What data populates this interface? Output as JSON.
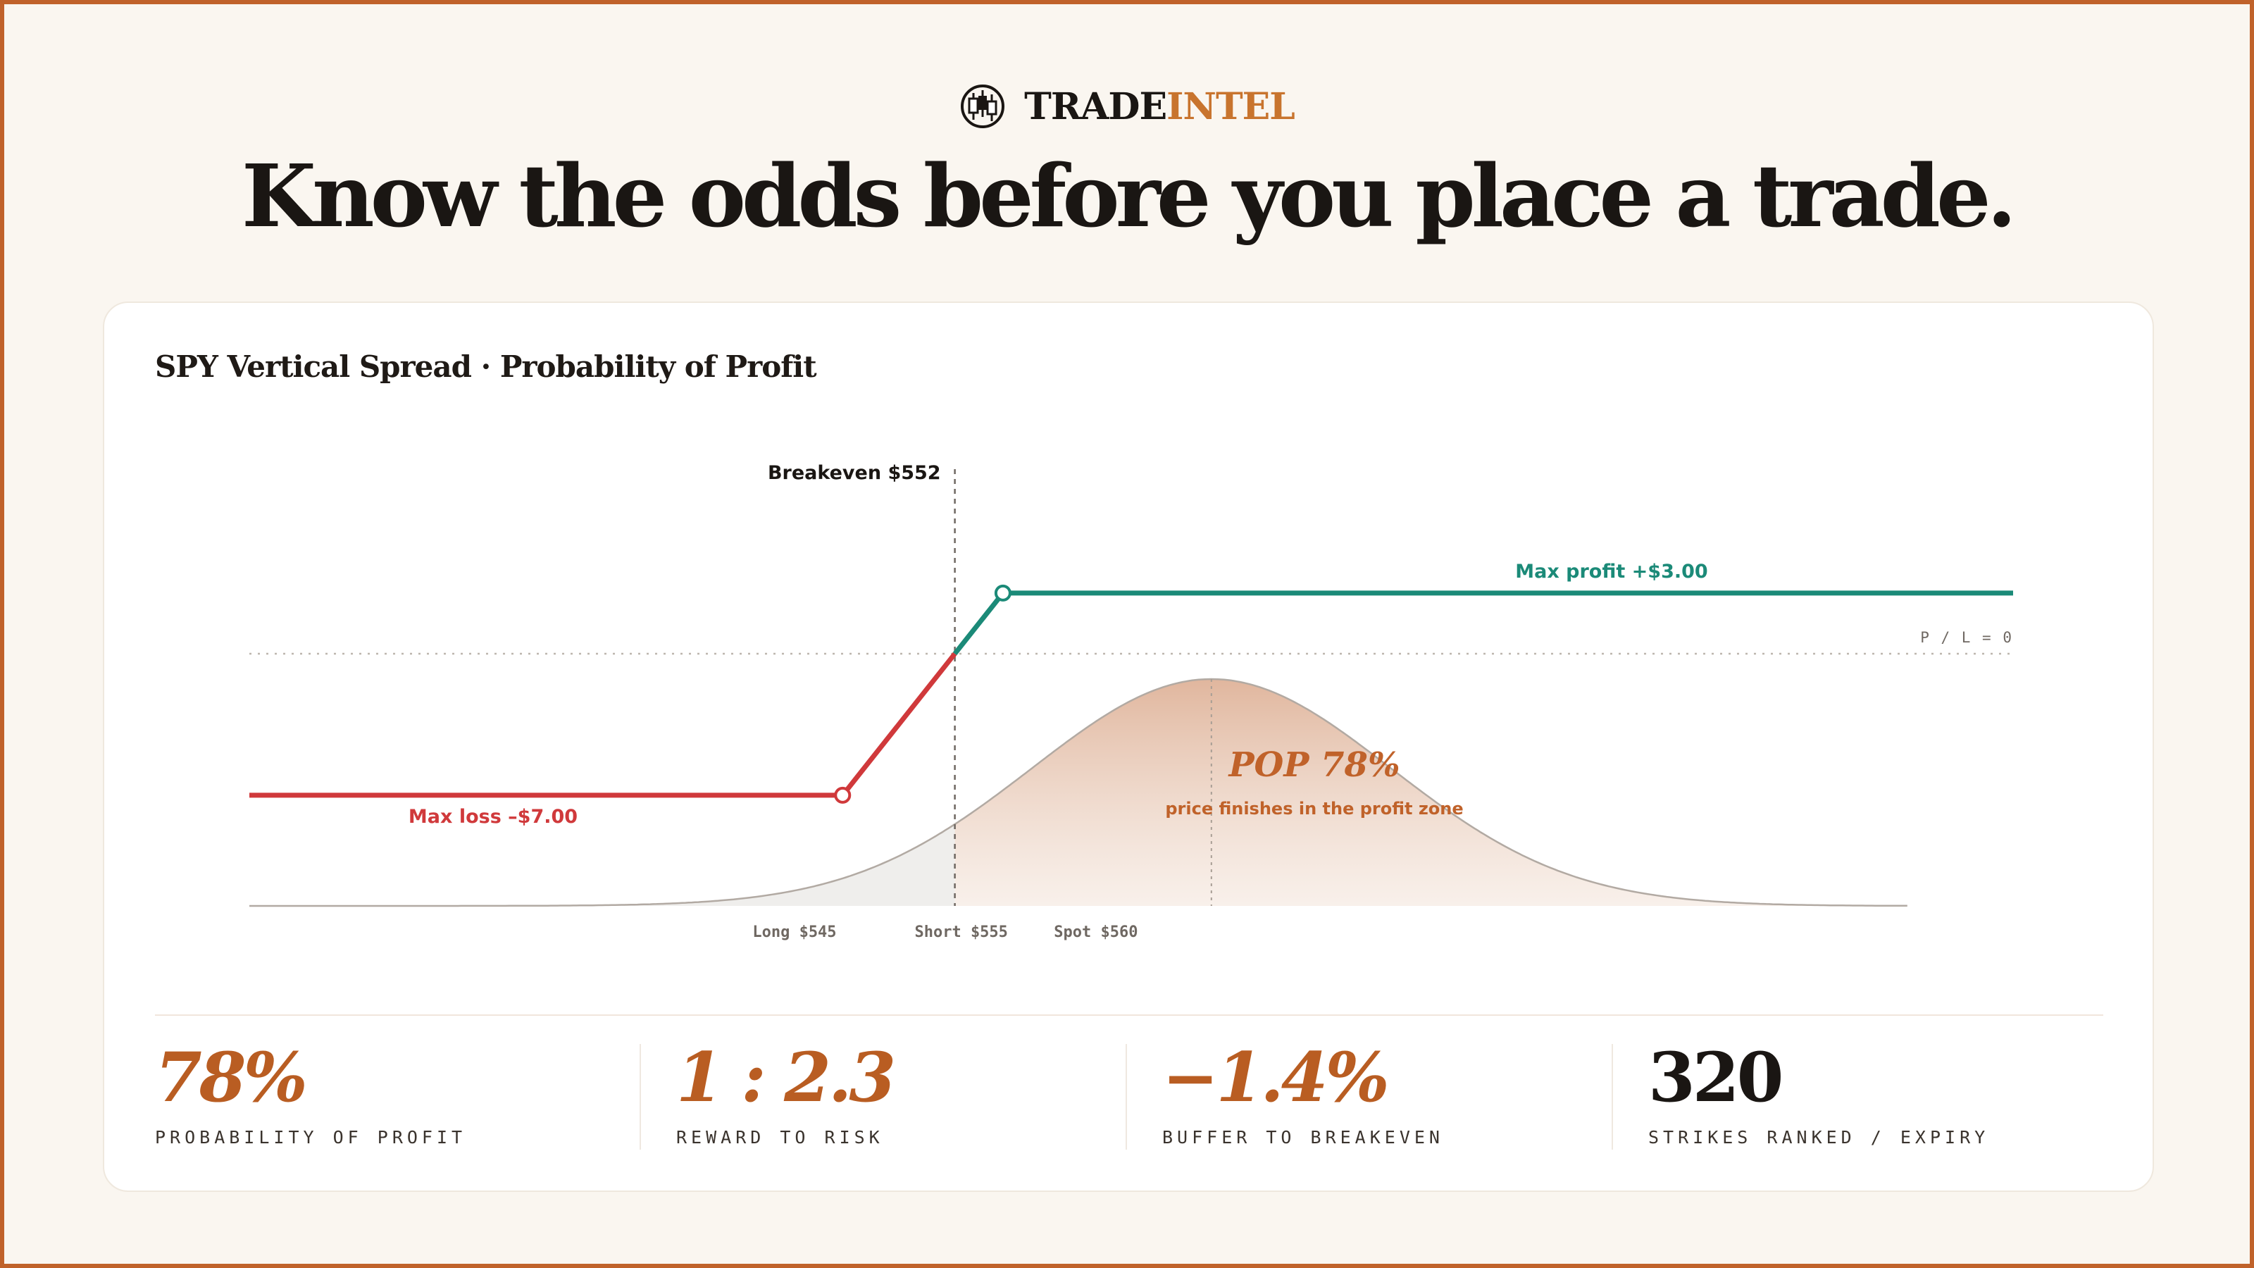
{
  "brand": {
    "logo_icon": "candlestick-logo-icon",
    "name_dark": "TRADE",
    "name_accent": "INTEL"
  },
  "headline": "Know the odds before you place a trade.",
  "card": {
    "title": "SPY Vertical Spread · Probability of Profit"
  },
  "chart_data": {
    "type": "line",
    "title": "SPY Vertical Spread · Probability of Profit",
    "xlabel": "",
    "ylabel": "",
    "xlim": [
      530,
      585
    ],
    "pl_line": {
      "points": [
        {
          "x": 530,
          "y": -7.0
        },
        {
          "x": 548.5,
          "y": -7.0
        },
        {
          "x": 552,
          "y": 0
        },
        {
          "x": 553.5,
          "y": 3.0
        },
        {
          "x": 585,
          "y": 3.0
        }
      ],
      "loss_color": "#d0393b",
      "profit_color": "#1b8a78"
    },
    "distribution": {
      "mean": 560,
      "sd": 5.6,
      "shaded_from": 552,
      "loss_fill": "#efeeec",
      "profit_fill": "#dba98c"
    },
    "annotations": {
      "breakeven": "Breakeven $552",
      "max_profit": "Max profit +$3.00",
      "max_loss": "Max loss –$7.00",
      "zero_line": "P / L = 0",
      "pop": "POP 78%",
      "pop_sub": "price finishes in the profit zone"
    },
    "tick_labels": [
      {
        "label": "Long $545",
        "x": 547
      },
      {
        "label": "Short $555",
        "x": 552.2
      },
      {
        "label": "Spot $560",
        "x": 556.4
      }
    ],
    "grid": false,
    "legend": "none"
  },
  "stats": [
    {
      "value": "78%",
      "label": "PROBABILITY OF PROFIT",
      "accent": true
    },
    {
      "value": "1 : 2.3",
      "label": "REWARD TO RISK",
      "accent": true
    },
    {
      "value": "−1.4%",
      "label": "BUFFER TO BREAKEVEN",
      "accent": true
    },
    {
      "value": "320",
      "label": "STRIKES RANKED / EXPIRY",
      "accent": false
    }
  ],
  "colors": {
    "accent": "#c0622a",
    "text": "#1a1613",
    "background": "#faf6f0"
  }
}
